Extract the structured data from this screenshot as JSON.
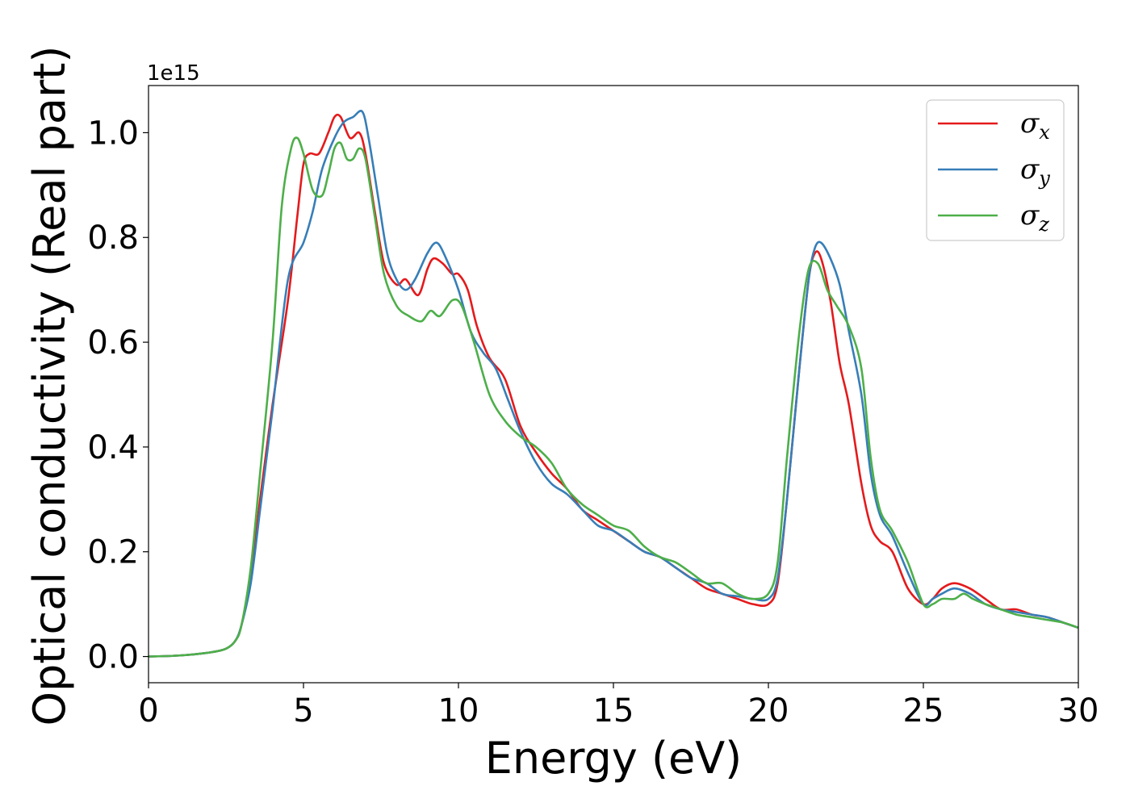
{
  "chart_data": {
    "type": "line",
    "title": "",
    "xlabel": "Energy (eV)",
    "ylabel": "Optical conductivity (Real part)",
    "y_offset_label": "1e15",
    "xlim": [
      0,
      30
    ],
    "ylim": [
      -0.05,
      1.09
    ],
    "xticks": [
      0,
      5,
      10,
      15,
      20,
      25,
      30
    ],
    "xtick_labels": [
      "0",
      "5",
      "10",
      "15",
      "20",
      "25",
      "30"
    ],
    "yticks": [
      0.0,
      0.2,
      0.4,
      0.6,
      0.8,
      1.0
    ],
    "ytick_labels": [
      "0.0",
      "0.2",
      "0.4",
      "0.6",
      "0.8",
      "1.0"
    ],
    "grid": false,
    "legend_position": "top-right",
    "series": [
      {
        "name": "σx",
        "symbol": "σ",
        "subscript": "x",
        "color": "#e41a1c",
        "x": [
          0,
          1,
          2,
          2.5,
          2.8,
          3.0,
          3.3,
          3.6,
          4.0,
          4.5,
          4.8,
          5.0,
          5.2,
          5.5,
          5.8,
          6.0,
          6.2,
          6.5,
          6.8,
          7.0,
          7.3,
          7.6,
          8.0,
          8.3,
          8.7,
          9.0,
          9.2,
          9.5,
          9.8,
          10.0,
          10.3,
          10.6,
          11.0,
          11.5,
          12.0,
          12.5,
          13.0,
          13.5,
          14.0,
          14.5,
          15.0,
          15.5,
          16.0,
          16.5,
          17.0,
          17.5,
          18.0,
          18.5,
          19.0,
          19.5,
          20.0,
          20.3,
          20.6,
          21.0,
          21.3,
          21.5,
          21.7,
          22.0,
          22.3,
          22.6,
          23.0,
          23.3,
          23.6,
          24.0,
          24.5,
          25.0,
          25.3,
          25.6,
          26.0,
          26.5,
          27.0,
          27.5,
          28.0,
          28.5,
          29.0,
          29.5,
          30.0
        ],
        "y": [
          0,
          0.002,
          0.008,
          0.015,
          0.03,
          0.06,
          0.15,
          0.3,
          0.48,
          0.68,
          0.84,
          0.94,
          0.96,
          0.96,
          1.0,
          1.03,
          1.03,
          0.99,
          1.0,
          0.96,
          0.85,
          0.75,
          0.71,
          0.72,
          0.69,
          0.74,
          0.76,
          0.75,
          0.73,
          0.73,
          0.7,
          0.63,
          0.57,
          0.53,
          0.44,
          0.39,
          0.35,
          0.32,
          0.28,
          0.26,
          0.24,
          0.22,
          0.2,
          0.19,
          0.17,
          0.15,
          0.13,
          0.12,
          0.11,
          0.1,
          0.1,
          0.14,
          0.3,
          0.55,
          0.72,
          0.77,
          0.76,
          0.68,
          0.56,
          0.48,
          0.33,
          0.25,
          0.22,
          0.2,
          0.13,
          0.1,
          0.11,
          0.13,
          0.14,
          0.13,
          0.11,
          0.09,
          0.09,
          0.08,
          0.075,
          0.065,
          0.055
        ]
      },
      {
        "name": "σy",
        "symbol": "σ",
        "subscript": "y",
        "color": "#377eb8",
        "x": [
          0,
          1,
          2,
          2.5,
          2.8,
          3.0,
          3.3,
          3.6,
          4.0,
          4.5,
          5.0,
          5.3,
          5.6,
          6.0,
          6.3,
          6.6,
          6.9,
          7.1,
          7.4,
          7.7,
          8.0,
          8.3,
          8.6,
          9.0,
          9.3,
          9.6,
          10.0,
          10.4,
          10.8,
          11.2,
          11.6,
          12.0,
          12.5,
          13.0,
          13.5,
          14.0,
          14.5,
          15.0,
          15.5,
          16.0,
          16.5,
          17.0,
          17.5,
          18.0,
          18.5,
          19.0,
          19.5,
          20.0,
          20.3,
          20.6,
          21.0,
          21.3,
          21.5,
          21.7,
          22.0,
          22.3,
          22.6,
          23.0,
          23.3,
          23.6,
          24.0,
          24.5,
          25.0,
          25.3,
          25.6,
          26.0,
          26.5,
          27.0,
          27.5,
          28.0,
          28.5,
          29.0,
          29.5,
          30.0
        ],
        "y": [
          0,
          0.002,
          0.008,
          0.015,
          0.03,
          0.06,
          0.14,
          0.28,
          0.47,
          0.72,
          0.79,
          0.85,
          0.93,
          0.99,
          1.02,
          1.03,
          1.04,
          0.99,
          0.88,
          0.77,
          0.72,
          0.7,
          0.72,
          0.77,
          0.79,
          0.76,
          0.7,
          0.62,
          0.58,
          0.55,
          0.49,
          0.43,
          0.37,
          0.33,
          0.31,
          0.28,
          0.25,
          0.24,
          0.22,
          0.2,
          0.19,
          0.17,
          0.15,
          0.14,
          0.12,
          0.115,
          0.11,
          0.11,
          0.15,
          0.3,
          0.55,
          0.72,
          0.78,
          0.79,
          0.76,
          0.71,
          0.62,
          0.5,
          0.35,
          0.27,
          0.23,
          0.16,
          0.1,
          0.11,
          0.12,
          0.13,
          0.12,
          0.1,
          0.09,
          0.085,
          0.08,
          0.075,
          0.065,
          0.055
        ]
      },
      {
        "name": "σz",
        "symbol": "σ",
        "subscript": "z",
        "color": "#4daf4a",
        "x": [
          0,
          1,
          2,
          2.5,
          2.8,
          3.0,
          3.3,
          3.6,
          4.0,
          4.3,
          4.6,
          4.8,
          5.0,
          5.3,
          5.6,
          5.8,
          6.0,
          6.2,
          6.4,
          6.6,
          6.8,
          7.0,
          7.3,
          7.6,
          8.0,
          8.4,
          8.8,
          9.1,
          9.4,
          9.8,
          10.1,
          10.5,
          11.0,
          11.5,
          12.0,
          12.5,
          13.0,
          13.5,
          14.0,
          14.5,
          15.0,
          15.5,
          16.0,
          16.5,
          17.0,
          17.5,
          18.0,
          18.5,
          19.0,
          19.5,
          20.0,
          20.3,
          20.6,
          21.0,
          21.3,
          21.6,
          21.9,
          22.2,
          22.6,
          23.0,
          23.3,
          23.6,
          24.0,
          24.5,
          25.0,
          25.3,
          25.6,
          26.0,
          26.3,
          26.6,
          27.0,
          27.5,
          28.0,
          28.5,
          29.0,
          29.5,
          30.0
        ],
        "y": [
          0,
          0.002,
          0.008,
          0.015,
          0.03,
          0.06,
          0.17,
          0.35,
          0.6,
          0.86,
          0.97,
          0.99,
          0.96,
          0.89,
          0.88,
          0.92,
          0.97,
          0.98,
          0.95,
          0.95,
          0.97,
          0.95,
          0.84,
          0.73,
          0.67,
          0.65,
          0.64,
          0.66,
          0.65,
          0.68,
          0.67,
          0.6,
          0.5,
          0.45,
          0.42,
          0.4,
          0.37,
          0.32,
          0.29,
          0.27,
          0.25,
          0.24,
          0.21,
          0.19,
          0.18,
          0.16,
          0.14,
          0.14,
          0.12,
          0.11,
          0.12,
          0.18,
          0.38,
          0.62,
          0.74,
          0.75,
          0.7,
          0.67,
          0.63,
          0.55,
          0.38,
          0.28,
          0.24,
          0.18,
          0.1,
          0.1,
          0.11,
          0.11,
          0.12,
          0.11,
          0.1,
          0.09,
          0.08,
          0.075,
          0.07,
          0.065,
          0.055
        ]
      }
    ]
  }
}
